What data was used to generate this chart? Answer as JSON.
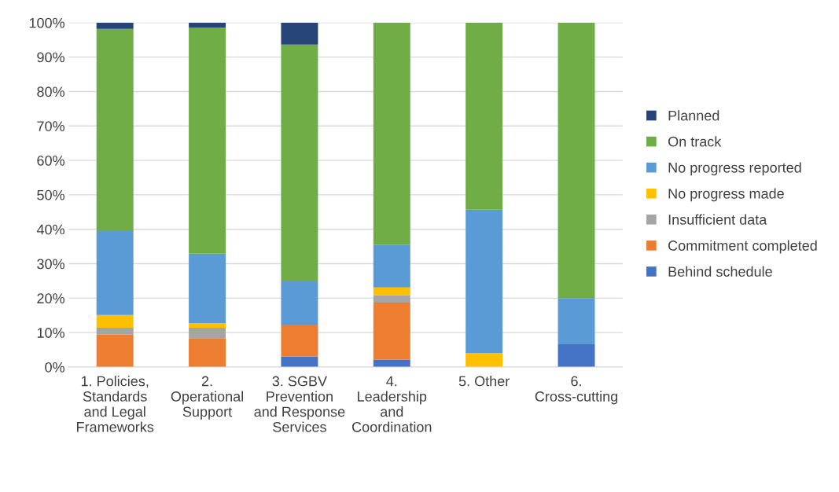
{
  "chart_data": {
    "type": "bar",
    "stacked": true,
    "categories": [
      "1. Policies, Standards and Legal Frameworks",
      "2. Operational Support",
      "3. SGBV Prevention and Response Services",
      "4. Leadership and Coordination",
      "5. Other",
      "6. Cross-cutting"
    ],
    "series": [
      {
        "name": "Behind schedule",
        "color": "#4472c4",
        "values": [
          0,
          0,
          3.0,
          2.1,
          0,
          6.6
        ]
      },
      {
        "name": "Commitment completed",
        "color": "#ed7d31",
        "values": [
          9.4,
          8.4,
          9.3,
          16.6,
          0,
          0
        ]
      },
      {
        "name": "Insufficient data",
        "color": "#a5a5a5",
        "values": [
          2.0,
          3.0,
          0,
          2.1,
          0,
          0
        ]
      },
      {
        "name": "No progress made",
        "color": "#ffc000",
        "values": [
          3.7,
          1.4,
          0,
          2.3,
          4.1,
          0
        ]
      },
      {
        "name": "No progress reported",
        "color": "#5b9bd5",
        "values": [
          24.4,
          20.1,
          12.6,
          12.3,
          41.6,
          13.4
        ]
      },
      {
        "name": "On track",
        "color": "#70ad47",
        "values": [
          58.7,
          65.7,
          68.7,
          64.6,
          54.3,
          80.0
        ]
      },
      {
        "name": "Planned",
        "color": "#264478",
        "values": [
          1.8,
          1.4,
          6.4,
          0,
          0,
          0
        ]
      }
    ],
    "ylim": [
      0,
      100
    ],
    "yticks": [
      {
        "value": 0,
        "label": "0%"
      },
      {
        "value": 10,
        "label": "10%"
      },
      {
        "value": 20,
        "label": "20%"
      },
      {
        "value": 30,
        "label": "30%"
      },
      {
        "value": 40,
        "label": "40%"
      },
      {
        "value": 50,
        "label": "50%"
      },
      {
        "value": 60,
        "label": "60%"
      },
      {
        "value": 70,
        "label": "70%"
      },
      {
        "value": 80,
        "label": "80%"
      },
      {
        "value": 90,
        "label": "90%"
      },
      {
        "value": 100,
        "label": "100%"
      }
    ],
    "grid": "y",
    "legend": "right"
  }
}
